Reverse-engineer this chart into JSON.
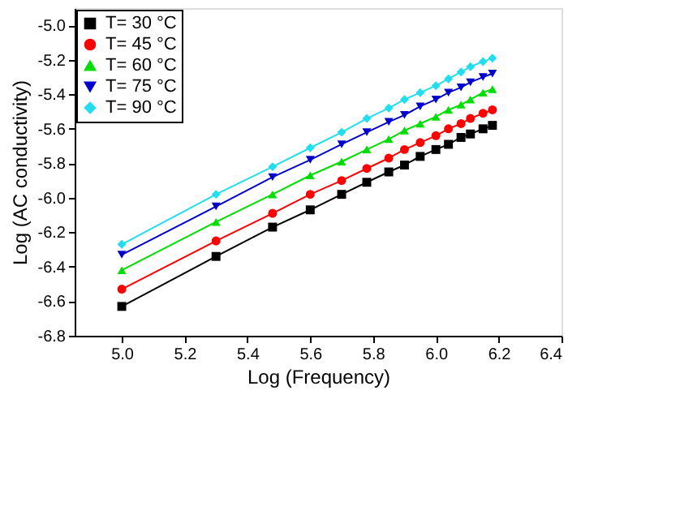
{
  "chart_data": {
    "type": "line",
    "xlabel": "Log (Frequency)",
    "ylabel": "Log (AC conductivity)",
    "x": [
      5.0,
      5.3,
      5.48,
      5.6,
      5.7,
      5.78,
      5.85,
      5.9,
      5.95,
      6.0,
      6.04,
      6.08,
      6.11,
      6.15,
      6.18
    ],
    "series": [
      {
        "name": "T= 30 °C",
        "color": "#000000",
        "marker": "square",
        "values": [
          -6.63,
          -6.34,
          -6.17,
          -6.07,
          -5.98,
          -5.91,
          -5.85,
          -5.81,
          -5.76,
          -5.72,
          -5.69,
          -5.65,
          -5.63,
          -5.6,
          -5.58
        ]
      },
      {
        "name": "T= 45 °C",
        "color": "#ff0000",
        "marker": "circle",
        "values": [
          -6.53,
          -6.25,
          -6.09,
          -5.98,
          -5.9,
          -5.83,
          -5.77,
          -5.72,
          -5.68,
          -5.64,
          -5.6,
          -5.57,
          -5.54,
          -5.51,
          -5.49
        ]
      },
      {
        "name": "T= 60 °C",
        "color": "#00dd00",
        "marker": "triangle",
        "values": [
          -6.42,
          -6.14,
          -5.98,
          -5.87,
          -5.79,
          -5.72,
          -5.66,
          -5.61,
          -5.57,
          -5.53,
          -5.49,
          -5.46,
          -5.43,
          -5.39,
          -5.37
        ]
      },
      {
        "name": "T= 75 °C",
        "color": "#0000cc",
        "marker": "triangle-down",
        "values": [
          -6.33,
          -6.05,
          -5.88,
          -5.78,
          -5.69,
          -5.62,
          -5.56,
          -5.52,
          -5.47,
          -5.43,
          -5.39,
          -5.36,
          -5.33,
          -5.3,
          -5.28
        ]
      },
      {
        "name": "T= 90 °C",
        "color": "#22ddee",
        "marker": "diamond",
        "values": [
          -6.27,
          -5.98,
          -5.82,
          -5.71,
          -5.62,
          -5.54,
          -5.48,
          -5.43,
          -5.39,
          -5.35,
          -5.31,
          -5.27,
          -5.24,
          -5.21,
          -5.19
        ]
      }
    ],
    "xlim": [
      4.85,
      6.4
    ],
    "xticks": [
      {
        "value": 5.0,
        "label": "5.0"
      },
      5.2,
      5.4,
      5.6,
      5.8,
      {
        "value": 6.0,
        "label": "6.0"
      },
      6.2,
      6.4
    ],
    "ylim": [
      -6.8,
      -4.9
    ],
    "yticks": [
      -6.8,
      -6.6,
      -6.4,
      -6.2,
      {
        "value": -6.0,
        "label": "-6.0"
      },
      -5.8,
      -5.6,
      -5.4,
      -5.2,
      {
        "value": -5.0,
        "label": "-5.0"
      }
    ],
    "legend": "top left",
    "grid": false,
    "line_style": "solid"
  }
}
